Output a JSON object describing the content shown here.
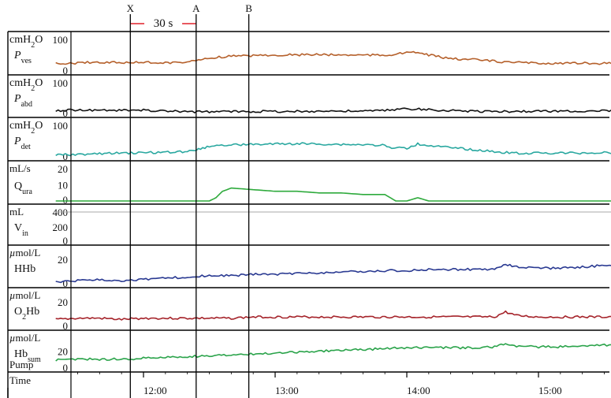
{
  "chart_data": {
    "type": "line",
    "time_axis": {
      "label": "Time",
      "tick_labels": [
        "12:00",
        "13:00",
        "14:00",
        "15:00"
      ],
      "scale_bar_label": "30 s"
    },
    "markers": [
      {
        "label": "X",
        "x": "11:54"
      },
      {
        "label": "A",
        "x": "12:24"
      },
      {
        "label": "B",
        "x": "12:48"
      }
    ],
    "panels": [
      {
        "key": "pves",
        "unit": "cmH2O",
        "unit_main": "cmH",
        "unit_sub": "2",
        "unit_tail": "O",
        "name_main": "P",
        "name_sub": "ves",
        "name_italic": true,
        "color": "#b5602b",
        "ylim": [
          0,
          100
        ],
        "ticks": [
          "100",
          "0"
        ],
        "x": [
          "11:20",
          "11:30",
          "11:40",
          "11:50",
          "12:00",
          "12:10",
          "12:20",
          "12:25",
          "12:30",
          "12:40",
          "12:50",
          "13:00",
          "13:10",
          "13:20",
          "13:30",
          "13:40",
          "13:50",
          "13:55",
          "14:00",
          "14:05",
          "14:10",
          "14:20",
          "14:30",
          "14:40",
          "14:50",
          "15:00",
          "15:10",
          "15:20",
          "15:30",
          "15:40"
        ],
        "values": [
          25,
          27,
          30,
          28,
          29,
          28,
          30,
          35,
          43,
          48,
          50,
          52,
          52,
          53,
          52,
          52,
          51,
          55,
          58,
          60,
          52,
          40,
          38,
          32,
          28,
          27,
          26,
          26,
          26,
          27
        ]
      },
      {
        "key": "pabd",
        "unit": "cmH2O",
        "unit_main": "cmH",
        "unit_sub": "2",
        "unit_tail": "O",
        "name_main": "P",
        "name_sub": "abd",
        "name_italic": true,
        "color": "#111111",
        "ylim": [
          0,
          100
        ],
        "ticks": [
          "100",
          "0"
        ],
        "x": [
          "11:20",
          "11:30",
          "11:40",
          "11:50",
          "12:00",
          "12:10",
          "12:20",
          "12:30",
          "12:40",
          "12:50",
          "13:00",
          "13:10",
          "13:20",
          "13:30",
          "13:40",
          "13:50",
          "14:00",
          "14:10",
          "14:20",
          "14:30",
          "14:40",
          "14:50",
          "15:00",
          "15:10",
          "15:20",
          "15:30",
          "15:40"
        ],
        "values": [
          12,
          14,
          13,
          12,
          13,
          10,
          8,
          8,
          9,
          9,
          9,
          9,
          10,
          10,
          10,
          12,
          18,
          14,
          12,
          10,
          9,
          9,
          10,
          10,
          10,
          11,
          12
        ]
      },
      {
        "key": "pdet",
        "unit": "cmH2O",
        "unit_main": "cmH",
        "unit_sub": "2",
        "unit_tail": "O",
        "name_main": "P",
        "name_sub": "det",
        "name_italic": true,
        "color": "#2aa8a0",
        "ylim": [
          0,
          100
        ],
        "ticks": [
          "100",
          "0"
        ],
        "x": [
          "11:20",
          "11:30",
          "11:40",
          "11:50",
          "12:00",
          "12:10",
          "12:20",
          "12:25",
          "12:30",
          "12:40",
          "12:50",
          "13:00",
          "13:10",
          "13:20",
          "13:30",
          "13:40",
          "13:50",
          "13:52",
          "14:00",
          "14:05",
          "14:10",
          "14:20",
          "14:30",
          "14:40",
          "14:50",
          "15:00",
          "15:10",
          "15:20",
          "15:30",
          "15:40"
        ],
        "values": [
          8,
          10,
          12,
          14,
          15,
          17,
          19,
          25,
          36,
          40,
          41,
          42,
          43,
          42,
          41,
          40,
          38,
          30,
          30,
          42,
          38,
          30,
          25,
          18,
          14,
          14,
          14,
          14,
          15,
          15
        ]
      },
      {
        "key": "qura",
        "unit": "mL/s",
        "unit_main": "mL/s",
        "unit_sub": "",
        "unit_tail": "",
        "name_main": "Q",
        "name_sub": "ura",
        "name_italic": false,
        "color": "#2eaa3c",
        "ylim": [
          0,
          20
        ],
        "ticks": [
          "20",
          "10",
          "0"
        ],
        "x": [
          "11:20",
          "12:30",
          "12:33",
          "12:36",
          "12:40",
          "12:50",
          "13:00",
          "13:10",
          "13:20",
          "13:30",
          "13:40",
          "13:50",
          "13:55",
          "14:00",
          "14:05",
          "14:10",
          "14:15",
          "15:40"
        ],
        "values": [
          0,
          0,
          2,
          6,
          8,
          7,
          6,
          6,
          5,
          5,
          4,
          4,
          0,
          0,
          2,
          0,
          0,
          0
        ]
      },
      {
        "key": "vin",
        "unit": "mL",
        "unit_main": "mL",
        "unit_sub": "",
        "unit_tail": "",
        "name_main": "V",
        "name_sub": "in",
        "name_italic": false,
        "color": "#aaaaaa",
        "ylim": [
          0,
          400
        ],
        "ticks": [
          "400",
          "200",
          "0"
        ],
        "x": [
          "11:20",
          "15:40"
        ],
        "values": [
          400,
          400
        ]
      },
      {
        "key": "hhb",
        "unit": "µmol/L",
        "unit_main": "µmol/L",
        "unit_sub": "",
        "unit_tail": "",
        "name_main": "HHb",
        "name_sub": "",
        "name_italic": false,
        "color": "#2a3a92",
        "ylim": [
          0,
          25
        ],
        "ticks": [
          "20",
          "0"
        ],
        "x": [
          "11:20",
          "11:30",
          "11:40",
          "11:50",
          "12:00",
          "12:10",
          "12:20",
          "12:30",
          "12:40",
          "12:50",
          "13:00",
          "13:10",
          "13:20",
          "13:30",
          "13:40",
          "13:50",
          "14:00",
          "14:10",
          "14:20",
          "14:30",
          "14:40",
          "14:45",
          "14:50",
          "15:00",
          "15:10",
          "15:20",
          "15:30",
          "15:40"
        ],
        "values": [
          2,
          3,
          4,
          3,
          4,
          5,
          6,
          7,
          7,
          8,
          8,
          9,
          9,
          10,
          10,
          11,
          11,
          12,
          12,
          12,
          12,
          16,
          14,
          13,
          13,
          14,
          15,
          15
        ]
      },
      {
        "key": "o2hb",
        "unit": "µmol/L",
        "unit_main": "µmol/L",
        "unit_sub": "",
        "unit_tail": "",
        "name_main": "O",
        "name_sub": "2",
        "name_tail": "Hb",
        "name_italic": false,
        "color": "#a5232a",
        "ylim": [
          0,
          25
        ],
        "ticks": [
          "20",
          "0"
        ],
        "x": [
          "11:20",
          "11:30",
          "11:40",
          "11:50",
          "12:00",
          "12:10",
          "12:20",
          "12:30",
          "12:40",
          "12:50",
          "13:00",
          "13:10",
          "13:20",
          "13:30",
          "13:40",
          "13:50",
          "14:00",
          "14:10",
          "14:20",
          "14:30",
          "14:40",
          "14:45",
          "14:50",
          "15:00",
          "15:10",
          "15:20",
          "15:30",
          "15:40"
        ],
        "values": [
          6,
          7,
          7,
          6,
          7,
          7,
          7,
          7,
          7,
          8,
          8,
          8,
          8,
          8,
          8,
          8,
          8,
          8,
          8,
          8,
          8,
          12,
          9,
          8,
          8,
          8,
          8,
          9
        ]
      },
      {
        "key": "hbsum",
        "unit": "µmol/L",
        "unit_main": "µmol/L",
        "unit_sub": "",
        "unit_tail": "",
        "name_main": "Hb",
        "name_sub": "sum",
        "name_italic": false,
        "color": "#2aa34a",
        "ylim": [
          0,
          35
        ],
        "ticks": [
          "20",
          "0"
        ],
        "extra_label": "Pump",
        "x": [
          "11:20",
          "11:30",
          "11:40",
          "11:50",
          "12:00",
          "12:10",
          "12:20",
          "12:30",
          "12:40",
          "12:50",
          "13:00",
          "13:10",
          "13:20",
          "13:30",
          "13:40",
          "13:50",
          "14:00",
          "14:10",
          "14:20",
          "14:30",
          "14:40",
          "14:45",
          "14:50",
          "15:00",
          "15:10",
          "15:20",
          "15:30",
          "15:40"
        ],
        "values": [
          10,
          11,
          11,
          11,
          12,
          13,
          14,
          15,
          16,
          17,
          18,
          19,
          20,
          21,
          22,
          23,
          24,
          24,
          24,
          24,
          25,
          29,
          26,
          25,
          25,
          26,
          27,
          28
        ]
      }
    ]
  }
}
